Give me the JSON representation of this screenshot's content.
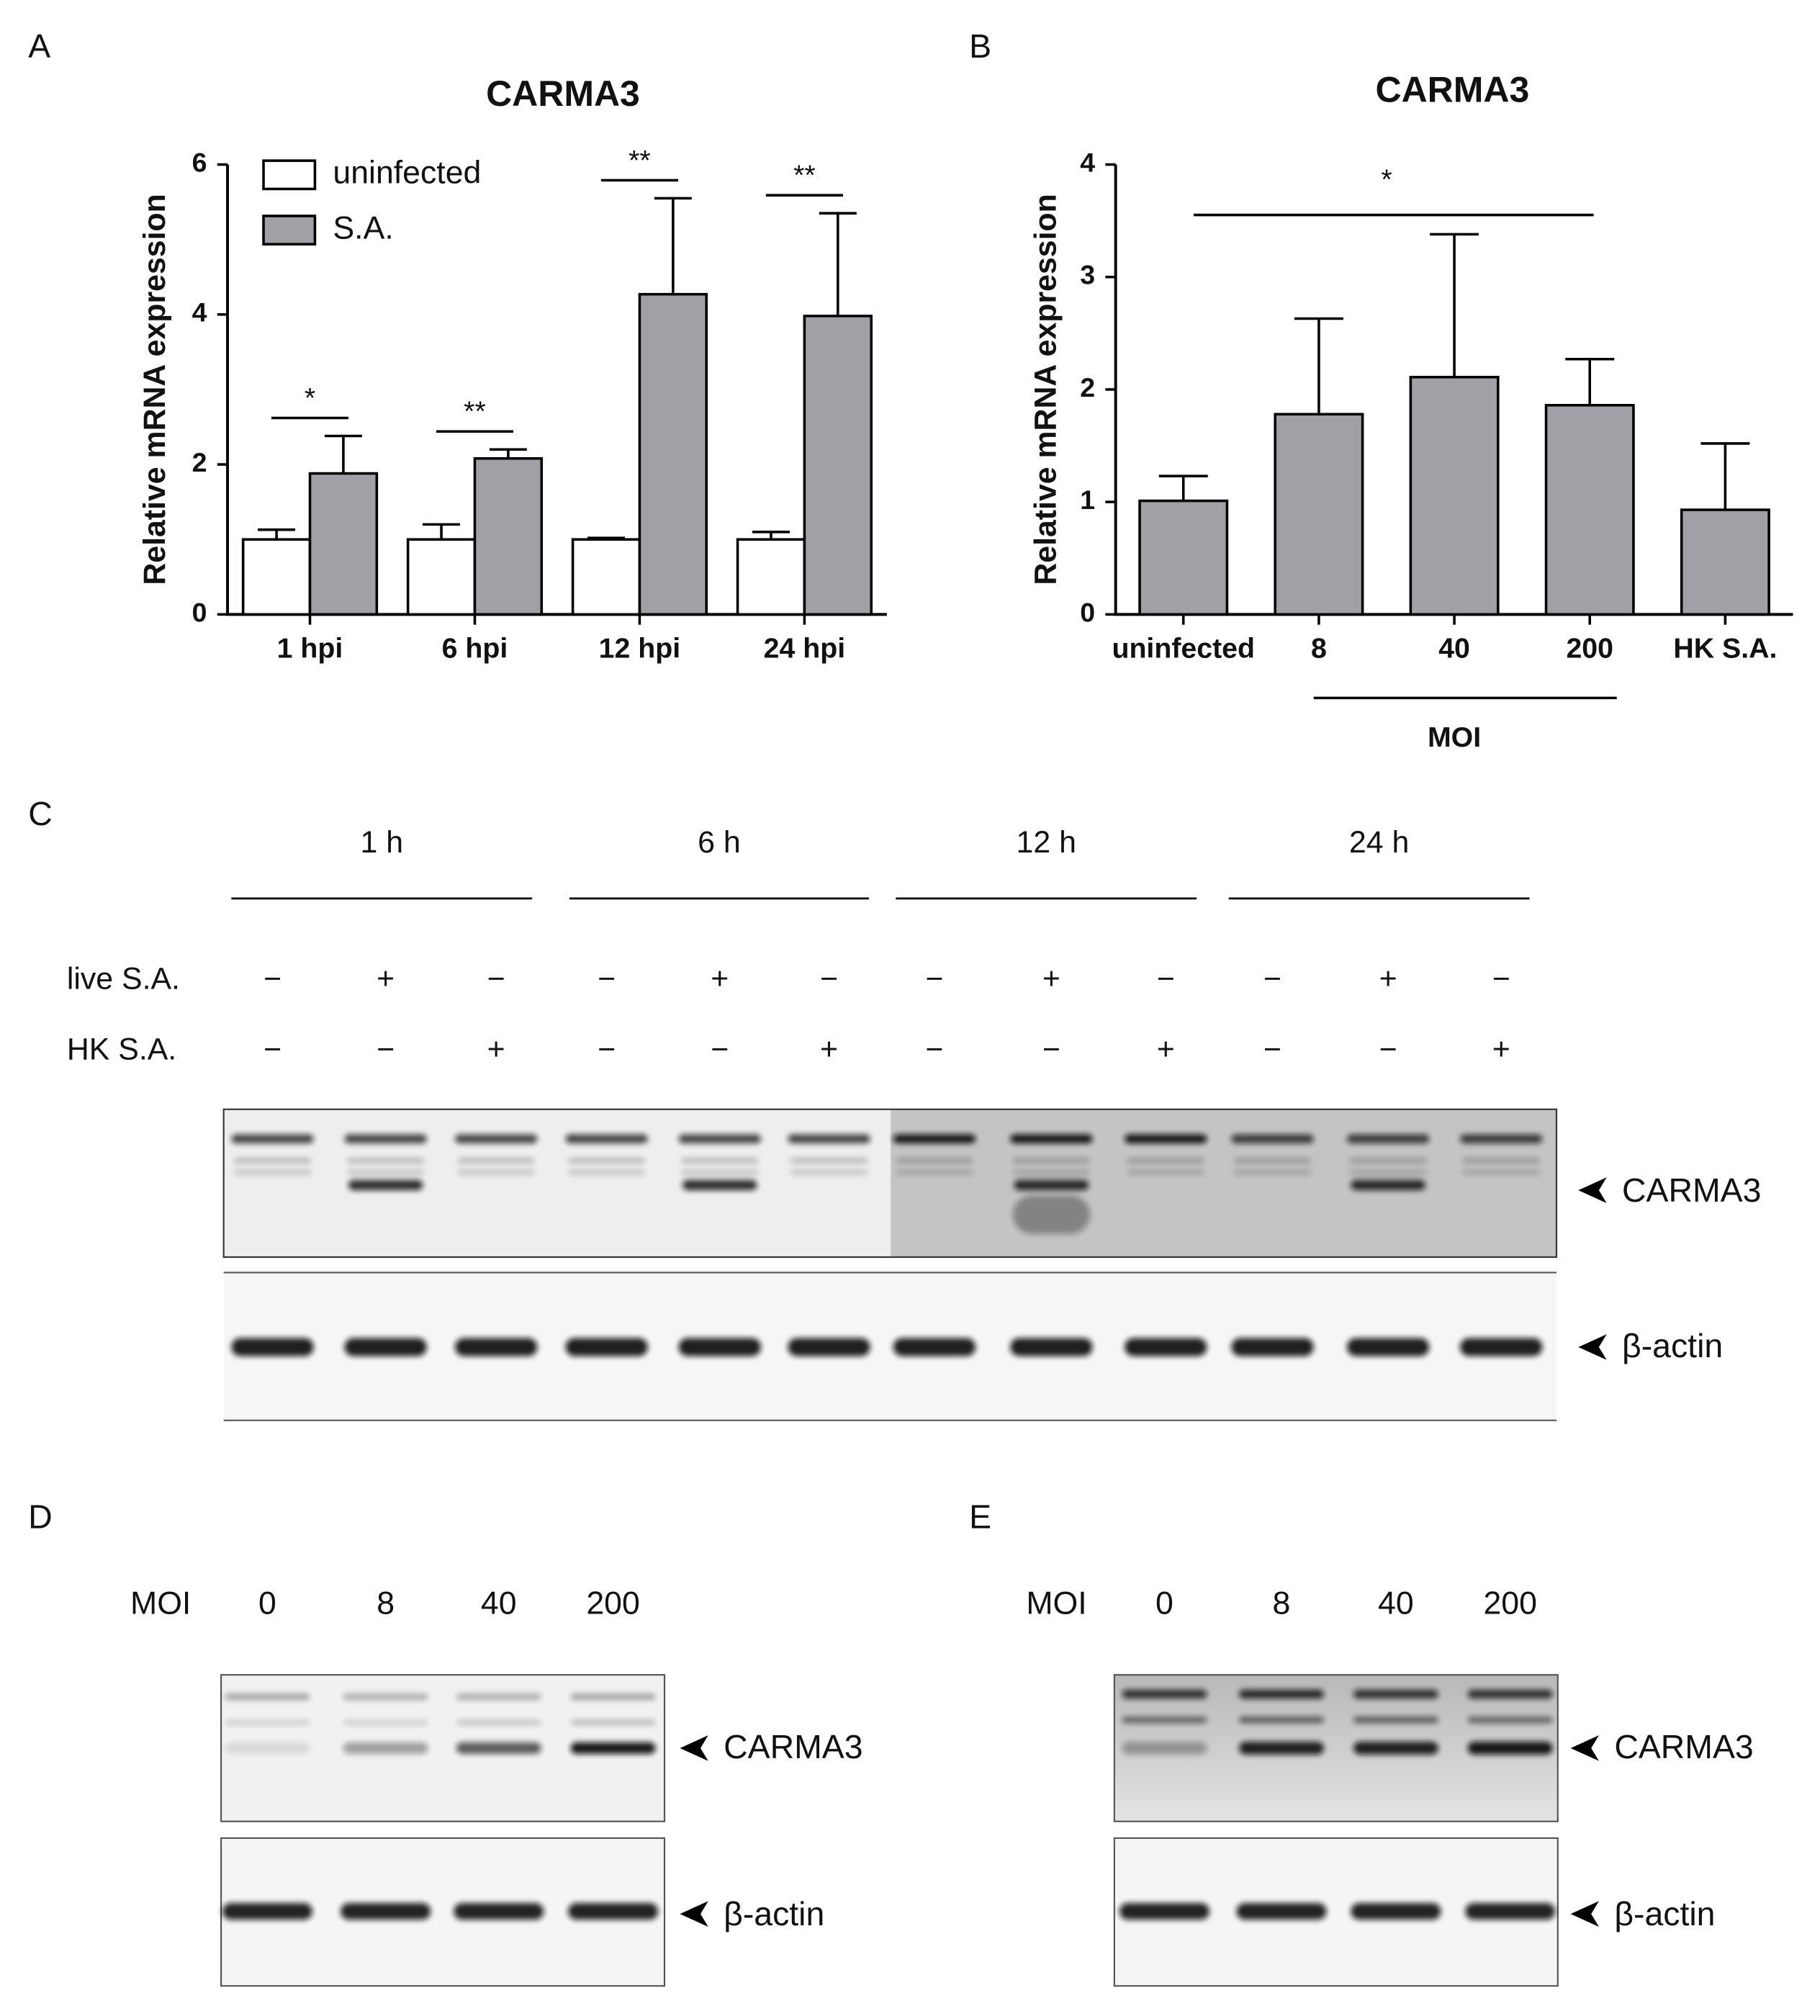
{
  "chart_data": [
    {
      "type": "bar",
      "panel": "A",
      "title": "CARMA3",
      "ylabel": "Relative mRNA expression",
      "categories": [
        "1 hpi",
        "6 hpi",
        "12 hpi",
        "24 hpi"
      ],
      "series": [
        {
          "name": "uninfected",
          "color": "#ffffff",
          "values": [
            1,
            1,
            1,
            1
          ],
          "errors": [
            0.13,
            0.2,
            0.02,
            0.1
          ]
        },
        {
          "name": "S.A.",
          "color": "#a0a0a6",
          "values": [
            1.88,
            2.08,
            4.27,
            3.98
          ],
          "errors": [
            0.5,
            0.12,
            1.28,
            1.37
          ]
        }
      ],
      "ylim": [
        0,
        6
      ],
      "yticks": [
        0,
        2,
        4,
        6
      ],
      "legend": "upper left",
      "significance": [
        "*",
        "**",
        "**",
        "**"
      ]
    },
    {
      "type": "bar",
      "panel": "B",
      "title": "CARMA3",
      "ylabel": "Relative mRNA expression",
      "categories": [
        "uninfected",
        "8",
        "40",
        "200",
        "HK S.A."
      ],
      "series": [
        {
          "color": "#a0a0a6",
          "values": [
            1.01,
            1.78,
            2.11,
            1.86,
            0.93
          ],
          "errors": [
            0.22,
            0.85,
            1.27,
            0.41,
            0.59
          ]
        }
      ],
      "ylim": [
        0,
        4
      ],
      "yticks": [
        0,
        1,
        2,
        3,
        4
      ],
      "significance_spans": [
        {
          "label": "*",
          "span": [
            0,
            3
          ]
        }
      ],
      "group_label": {
        "label": "MOI",
        "span": [
          1,
          3
        ]
      }
    }
  ],
  "blot_c": {
    "panel": "C",
    "timepoints": [
      "1 h",
      "6 h",
      "12 h",
      "24 h"
    ],
    "rows": [
      {
        "label": "live S.A.",
        "signs": [
          "−",
          "+",
          "−",
          "−",
          "+",
          "−",
          "−",
          "+",
          "−",
          "−",
          "+",
          "−"
        ]
      },
      {
        "label": "HK S.A.",
        "signs": [
          "−",
          "−",
          "+",
          "−",
          "−",
          "+",
          "−",
          "−",
          "+",
          "−",
          "−",
          "+"
        ]
      }
    ],
    "markers": [
      "CARMA3",
      "β-actin"
    ]
  },
  "blot_d": {
    "panel": "D",
    "row_label": "MOI",
    "lanes": [
      "0",
      "8",
      "40",
      "200"
    ],
    "markers": [
      "CARMA3",
      "β-actin"
    ]
  },
  "blot_e": {
    "panel": "E",
    "row_label": "MOI",
    "lanes": [
      "0",
      "8",
      "40",
      "200"
    ],
    "markers": [
      "CARMA3",
      "β-actin"
    ]
  }
}
